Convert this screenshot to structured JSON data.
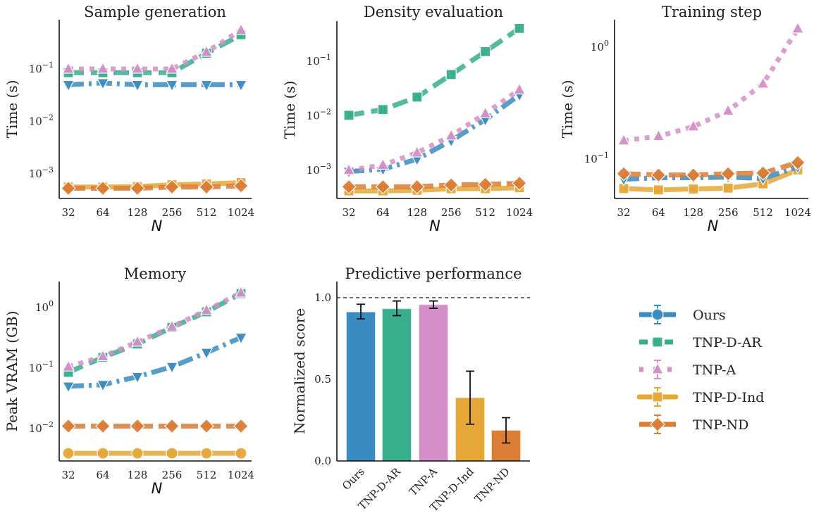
{
  "chart_data": [
    {
      "type": "line",
      "title": "Sample generation",
      "xlabel": "N",
      "ylabel": "Time (s)",
      "xscale": "log2",
      "yscale": "log10",
      "x": [
        32,
        64,
        128,
        256,
        512,
        1024
      ],
      "xticks": [
        "32",
        "64",
        "128",
        "256",
        "512",
        "1024"
      ],
      "yticks": [
        {
          "base": "10",
          "exp": "−1",
          "value": 0.1
        },
        {
          "base": "10",
          "exp": "−2",
          "value": 0.01
        },
        {
          "base": "10",
          "exp": "−3",
          "value": 0.001
        }
      ],
      "series": [
        {
          "name": "TNP-D-Ind",
          "values": [
            0.00056,
            0.00056,
            0.00057,
            0.00062,
            0.00064,
            0.00068
          ]
        },
        {
          "name": "TNP-ND",
          "values": [
            0.00053,
            0.00053,
            0.00053,
            0.00056,
            0.00056,
            0.00059
          ]
        },
        {
          "name": "Ours",
          "values": [
            0.05,
            0.054,
            0.05,
            0.05,
            0.05,
            0.05
          ]
        },
        {
          "name": "TNP-D-AR",
          "values": [
            0.085,
            0.085,
            0.085,
            0.085,
            0.2,
            0.45
          ]
        },
        {
          "name": "TNP-A",
          "values": [
            0.1,
            0.1,
            0.1,
            0.1,
            0.21,
            0.55
          ]
        }
      ]
    },
    {
      "type": "line",
      "title": "Density evaluation",
      "xlabel": "N",
      "ylabel": "Time (s)",
      "xscale": "log2",
      "yscale": "log10",
      "x": [
        32,
        64,
        128,
        256,
        512,
        1024
      ],
      "xticks": [
        "32",
        "64",
        "128",
        "256",
        "512",
        "1024"
      ],
      "yticks": [
        {
          "base": "10",
          "exp": "−1",
          "value": 0.1
        },
        {
          "base": "10",
          "exp": "−2",
          "value": 0.01
        },
        {
          "base": "10",
          "exp": "−3",
          "value": 0.001
        }
      ],
      "series": [
        {
          "name": "TNP-D-Ind",
          "values": [
            0.00042,
            0.00042,
            0.00043,
            0.00046,
            0.00046,
            0.00048
          ]
        },
        {
          "name": "TNP-ND",
          "values": [
            0.0005,
            0.0005,
            0.0005,
            0.00054,
            0.00055,
            0.00058
          ]
        },
        {
          "name": "Ours",
          "values": [
            0.00095,
            0.00105,
            0.0016,
            0.0035,
            0.0085,
            0.024
          ]
        },
        {
          "name": "TNP-A",
          "values": [
            0.001,
            0.00125,
            0.0021,
            0.0043,
            0.011,
            0.03
          ]
        },
        {
          "name": "TNP-D-AR",
          "values": [
            0.0102,
            0.013,
            0.022,
            0.057,
            0.15,
            0.4
          ]
        }
      ]
    },
    {
      "type": "line",
      "title": "Training step",
      "xlabel": "N",
      "ylabel": "Time (s)",
      "xscale": "log2",
      "yscale": "log10",
      "x": [
        32,
        64,
        128,
        256,
        512,
        1024
      ],
      "xticks": [
        "32",
        "64",
        "128",
        "256",
        "512",
        "1024"
      ],
      "yticks": [
        {
          "base": "10",
          "exp": "0",
          "value": 1
        },
        {
          "base": "10",
          "exp": "−1",
          "value": 0.1
        }
      ],
      "series": [
        {
          "name": "TNP-D-Ind",
          "values": [
            0.0545,
            0.053,
            0.054,
            0.055,
            0.06,
            0.08
          ]
        },
        {
          "name": "Ours",
          "values": [
            0.066,
            0.068,
            0.068,
            0.069,
            0.067,
            0.085
          ]
        },
        {
          "name": "TNP-ND",
          "values": [
            0.074,
            0.072,
            0.072,
            0.074,
            0.075,
            0.093
          ]
        },
        {
          "name": "TNP-A",
          "values": [
            0.146,
            0.16,
            0.195,
            0.27,
            0.47,
            1.46
          ]
        }
      ]
    },
    {
      "type": "line",
      "title": "Memory",
      "xlabel": "N",
      "ylabel": "Peak VRAM (GB)",
      "xscale": "log2",
      "yscale": "log10",
      "x": [
        32,
        64,
        128,
        256,
        512,
        1024
      ],
      "xticks": [
        "32",
        "64",
        "128",
        "256",
        "512",
        "1024"
      ],
      "yticks": [
        {
          "base": "10",
          "exp": "0",
          "value": 1
        },
        {
          "base": "10",
          "exp": "−1",
          "value": 0.1
        },
        {
          "base": "10",
          "exp": "−2",
          "value": 0.01
        }
      ],
      "series": [
        {
          "name": "TNP-D-Ind",
          "values": [
            0.0039,
            0.0039,
            0.0039,
            0.0039,
            0.0039,
            0.0039
          ]
        },
        {
          "name": "TNP-ND",
          "values": [
            0.011,
            0.011,
            0.011,
            0.011,
            0.011,
            0.011
          ]
        },
        {
          "name": "Ours",
          "values": [
            0.05,
            0.053,
            0.072,
            0.105,
            0.18,
            0.32
          ]
        },
        {
          "name": "TNP-D-AR",
          "values": [
            0.085,
            0.15,
            0.25,
            0.47,
            0.85,
            1.7
          ]
        },
        {
          "name": "TNP-A",
          "values": [
            0.105,
            0.155,
            0.27,
            0.48,
            0.9,
            1.75
          ]
        }
      ]
    },
    {
      "type": "bar",
      "title": "Predictive performance",
      "xlabel": "",
      "ylabel": "Normalized score",
      "ylim": [
        0,
        1.1
      ],
      "categories": [
        "Ours",
        "TNP-D-AR",
        "TNP-A",
        "TNP-D-Ind",
        "TNP-ND"
      ],
      "values": [
        0.91,
        0.93,
        0.955,
        0.385,
        0.185
      ],
      "error_low": [
        0.87,
        0.89,
        0.935,
        0.225,
        0.11
      ],
      "error_high": [
        0.96,
        0.98,
        0.98,
        0.55,
        0.265
      ],
      "yticks": [
        "0.0",
        "0.5",
        "1.0"
      ],
      "reference_line": 1.0
    }
  ],
  "legend": {
    "placement": "right",
    "entries": [
      {
        "name": "Ours",
        "color": "#3a8cc0",
        "marker": "circle"
      },
      {
        "name": "TNP-D-AR",
        "color": "#37ae8c",
        "marker": "square"
      },
      {
        "name": "TNP-A",
        "color": "#d48fc8",
        "marker": "triangle"
      },
      {
        "name": "TNP-D-Ind",
        "color": "#e5a737",
        "marker": "square"
      },
      {
        "name": "TNP-ND",
        "color": "#dc7d35",
        "marker": "diamond"
      }
    ]
  }
}
